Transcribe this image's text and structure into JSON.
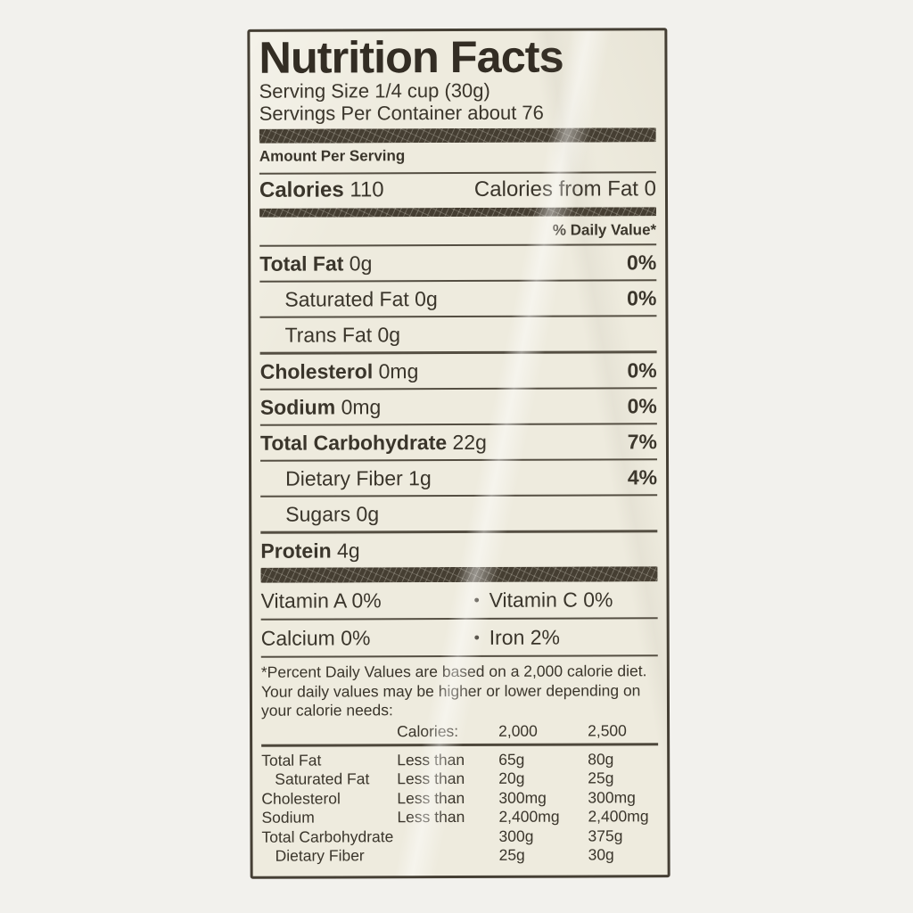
{
  "colors": {
    "page_background": "#f2f1ed",
    "label_background": "#eeebde",
    "ink": "#3a352b",
    "border_ink": "#453f34"
  },
  "label": {
    "title": "Nutrition Facts",
    "serving_size": "Serving Size 1/4 cup (30g)",
    "servings_per_container": "Servings Per Container about 76",
    "amount_per_serving": "Amount Per Serving",
    "calories": {
      "label": "Calories",
      "value": "110",
      "from_fat": "Calories from Fat 0"
    },
    "daily_value_header": "% Daily Value*",
    "nutrients": [
      {
        "name": "Total Fat",
        "amount": "0g",
        "dv": "0%",
        "bold": true,
        "indent": false,
        "sep": "thin"
      },
      {
        "name": "Saturated Fat",
        "amount": "0g",
        "dv": "0%",
        "bold": false,
        "indent": true,
        "sep": "thin"
      },
      {
        "name": "Trans Fat",
        "amount": "0g",
        "dv": "",
        "bold": false,
        "indent": true,
        "sep": "thin"
      },
      {
        "name": "Cholesterol",
        "amount": "0mg",
        "dv": "0%",
        "bold": true,
        "indent": false,
        "sep": "medium"
      },
      {
        "name": "Sodium",
        "amount": "0mg",
        "dv": "0%",
        "bold": true,
        "indent": false,
        "sep": "thin"
      },
      {
        "name": "Total Carbohydrate",
        "amount": "22g",
        "dv": "7%",
        "bold": true,
        "indent": false,
        "sep": "thin"
      },
      {
        "name": "Dietary Fiber",
        "amount": "1g",
        "dv": "4%",
        "bold": false,
        "indent": true,
        "sep": "thin"
      },
      {
        "name": "Sugars",
        "amount": "0g",
        "dv": "",
        "bold": false,
        "indent": true,
        "sep": "thin"
      },
      {
        "name": "Protein",
        "amount": "4g",
        "dv": "",
        "bold": true,
        "indent": false,
        "sep": "medium"
      }
    ],
    "vitamins": {
      "separator": "•",
      "rows": [
        {
          "left": "Vitamin A 0%",
          "right": "Vitamin C 0%"
        },
        {
          "left": "Calcium 0%",
          "right": "Iron 2%"
        }
      ]
    },
    "footnote": "*Percent Daily Values are based on a 2,000 calorie diet. Your daily values may be higher or lower depending on your calorie needs:",
    "footnote_table": {
      "header": {
        "label": "Calories:",
        "col1": "2,000",
        "col2": "2,500"
      },
      "rows": [
        {
          "name": "Total Fat",
          "qualifier": "Less than",
          "col1": "65g",
          "col2": "80g",
          "indent": false
        },
        {
          "name": "Saturated Fat",
          "qualifier": "Less than",
          "col1": "20g",
          "col2": "25g",
          "indent": true
        },
        {
          "name": "Cholesterol",
          "qualifier": "Less than",
          "col1": "300mg",
          "col2": "300mg",
          "indent": false
        },
        {
          "name": "Sodium",
          "qualifier": "Less than",
          "col1": "2,400mg",
          "col2": "2,400mg",
          "indent": false
        },
        {
          "name": "Total Carbohydrate",
          "qualifier": "",
          "col1": "300g",
          "col2": "375g",
          "indent": false
        },
        {
          "name": "Dietary Fiber",
          "qualifier": "",
          "col1": "25g",
          "col2": "30g",
          "indent": true
        }
      ]
    }
  }
}
